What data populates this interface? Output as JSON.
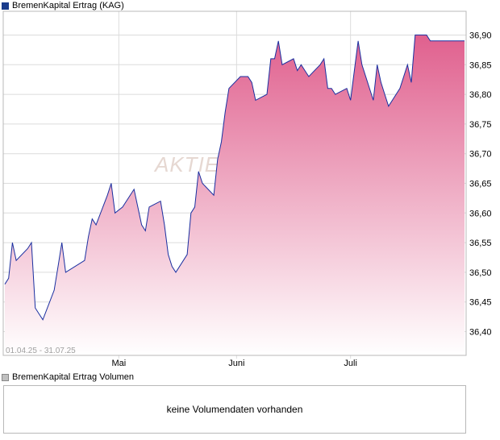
{
  "legend": {
    "price_series": "BremenKapital Ertrag (KAG)",
    "volume_series": "BremenKapital Ertrag Volumen"
  },
  "watermark": "AKTIE",
  "date_range": "01.04.25 - 31.07.25",
  "volume_message": "keine Volumendaten vorhanden",
  "colors": {
    "line": "#1a2fa0",
    "fill_top": "#e0608e",
    "fill_bottom": "#ffffff",
    "grid": "#dcdcdc",
    "frame": "#b8b8b8"
  },
  "chart_data": {
    "type": "area",
    "ylim": [
      36.36,
      36.94
    ],
    "yticks": [
      "36,40",
      "36,45",
      "36,50",
      "36,55",
      "36,60",
      "36,65",
      "36,70",
      "36,75",
      "36,80",
      "36,85",
      "36,90"
    ],
    "month_labels": [
      "Mai",
      "Juni",
      "Juli"
    ],
    "grid": true,
    "x": [
      "01.04.25",
      "02.04.25",
      "03.04.25",
      "04.04.25",
      "07.04.25",
      "08.04.25",
      "09.04.25",
      "10.04.25",
      "11.04.25",
      "14.04.25",
      "15.04.25",
      "16.04.25",
      "17.04.25",
      "22.04.25",
      "23.04.25",
      "24.04.25",
      "25.04.25",
      "28.04.25",
      "29.04.25",
      "30.04.25",
      "02.05.25",
      "05.05.25",
      "06.05.25",
      "07.05.25",
      "08.05.25",
      "09.05.25",
      "12.05.25",
      "13.05.25",
      "14.05.25",
      "15.05.25",
      "16.05.25",
      "19.05.25",
      "20.05.25",
      "21.05.25",
      "22.05.25",
      "23.05.25",
      "26.05.25",
      "27.05.25",
      "28.05.25",
      "29.05.25",
      "30.05.25",
      "02.06.25",
      "03.06.25",
      "04.06.25",
      "05.06.25",
      "06.06.25",
      "09.06.25",
      "10.06.25",
      "11.06.25",
      "12.06.25",
      "13.06.25",
      "16.06.25",
      "17.06.25",
      "18.06.25",
      "19.06.25",
      "20.06.25",
      "23.06.25",
      "24.06.25",
      "25.06.25",
      "26.06.25",
      "27.06.25",
      "30.06.25",
      "01.07.25",
      "02.07.25",
      "03.07.25",
      "04.07.25",
      "07.07.25",
      "08.07.25",
      "09.07.25",
      "10.07.25",
      "11.07.25",
      "14.07.25",
      "15.07.25",
      "16.07.25",
      "17.07.25",
      "18.07.25",
      "21.07.25",
      "22.07.25",
      "23.07.25",
      "24.07.25",
      "25.07.25",
      "28.07.25",
      "29.07.25",
      "30.07.25",
      "31.07.25"
    ],
    "series": [
      {
        "values": [
          36.48,
          36.49,
          36.55,
          36.52,
          36.54,
          36.55,
          36.44,
          36.43,
          36.42,
          36.47,
          36.51,
          36.55,
          36.5,
          36.52,
          36.56,
          36.59,
          36.58,
          36.63,
          36.65,
          36.6,
          36.61,
          36.64,
          36.61,
          36.58,
          36.57,
          36.61,
          36.62,
          36.58,
          36.53,
          36.51,
          36.5,
          36.53,
          36.6,
          36.61,
          36.67,
          36.65,
          36.63,
          36.69,
          36.72,
          36.77,
          36.81,
          36.83,
          36.83,
          36.83,
          36.82,
          36.79,
          36.8,
          36.86,
          36.86,
          36.89,
          36.85,
          36.86,
          36.84,
          36.85,
          36.84,
          36.83,
          36.85,
          36.86,
          36.81,
          36.81,
          36.8,
          36.81,
          36.79,
          36.84,
          36.89,
          36.85,
          36.79,
          36.85,
          36.82,
          36.8,
          36.78,
          36.81,
          36.83,
          36.85,
          36.82,
          36.9,
          36.9,
          36.89,
          36.89,
          36.89,
          36.89,
          36.89,
          36.89,
          36.89,
          36.89
        ]
      }
    ]
  }
}
